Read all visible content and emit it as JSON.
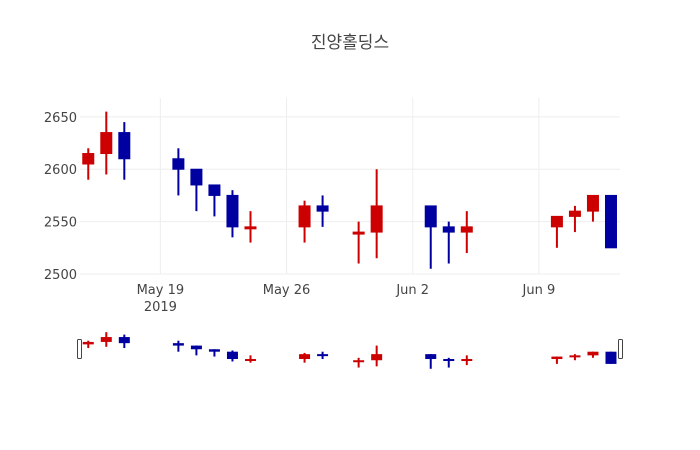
{
  "chart_data": {
    "type": "candlestick",
    "title": "진양홀딩스",
    "xlabel": "",
    "ylabel": "",
    "ylim": [
      2500,
      2668
    ],
    "xlim": [
      "2019-05-14T13:00",
      "2019-06-13T12:00"
    ],
    "grid": true,
    "legend": "none",
    "colors": {
      "increasing": "#cc0000",
      "decreasing": "#0000a0",
      "grid": "#eeeeee",
      "text": "#444444"
    },
    "y_ticks": [
      2500,
      2550,
      2600,
      2650
    ],
    "x_ticks": [
      {
        "date": "2019-05-19",
        "label": "May 19",
        "sublabel": "2019"
      },
      {
        "date": "2019-05-26",
        "label": "May 26",
        "sublabel": ""
      },
      {
        "date": "2019-06-02",
        "label": "Jun 2",
        "sublabel": ""
      },
      {
        "date": "2019-06-09",
        "label": "Jun 9",
        "sublabel": ""
      }
    ],
    "candles": [
      {
        "date": "2019-05-15",
        "open": 2605,
        "high": 2620,
        "low": 2590,
        "close": 2615
      },
      {
        "date": "2019-05-16",
        "open": 2615,
        "high": 2655,
        "low": 2595,
        "close": 2635
      },
      {
        "date": "2019-05-17",
        "open": 2635,
        "high": 2645,
        "low": 2590,
        "close": 2610
      },
      {
        "date": "2019-05-20",
        "open": 2610,
        "high": 2620,
        "low": 2575,
        "close": 2600
      },
      {
        "date": "2019-05-21",
        "open": 2600,
        "high": 2600,
        "low": 2560,
        "close": 2585
      },
      {
        "date": "2019-05-22",
        "open": 2585,
        "high": 2585,
        "low": 2555,
        "close": 2575
      },
      {
        "date": "2019-05-23",
        "open": 2575,
        "high": 2580,
        "low": 2535,
        "close": 2545
      },
      {
        "date": "2019-05-24",
        "open": 2545,
        "high": 2560,
        "low": 2530,
        "close": 2545
      },
      {
        "date": "2019-05-27",
        "open": 2545,
        "high": 2570,
        "low": 2530,
        "close": 2565
      },
      {
        "date": "2019-05-28",
        "open": 2565,
        "high": 2575,
        "low": 2545,
        "close": 2560
      },
      {
        "date": "2019-05-30",
        "open": 2540,
        "high": 2550,
        "low": 2510,
        "close": 2540
      },
      {
        "date": "2019-05-31",
        "open": 2540,
        "high": 2600,
        "low": 2515,
        "close": 2565
      },
      {
        "date": "2019-06-03",
        "open": 2565,
        "high": 2565,
        "low": 2505,
        "close": 2545
      },
      {
        "date": "2019-06-04",
        "open": 2545,
        "high": 2550,
        "low": 2510,
        "close": 2540
      },
      {
        "date": "2019-06-05",
        "open": 2540,
        "high": 2560,
        "low": 2520,
        "close": 2545
      },
      {
        "date": "2019-06-10",
        "open": 2545,
        "high": 2555,
        "low": 2525,
        "close": 2555
      },
      {
        "date": "2019-06-11",
        "open": 2555,
        "high": 2565,
        "low": 2540,
        "close": 2560
      },
      {
        "date": "2019-06-12",
        "open": 2560,
        "high": 2575,
        "low": 2550,
        "close": 2575
      },
      {
        "date": "2019-06-13",
        "open": 2575,
        "high": 2575,
        "low": 2525,
        "close": 2525
      }
    ],
    "range_slider": {
      "visible": true
    }
  }
}
